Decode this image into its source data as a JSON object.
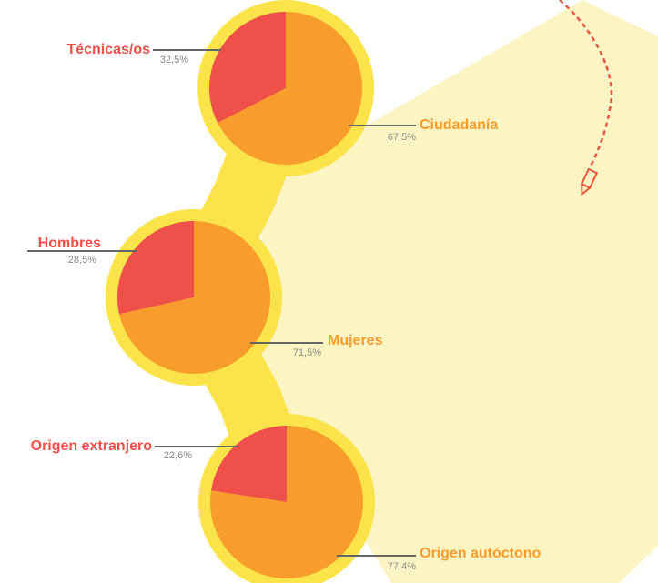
{
  "chart_data": [
    {
      "type": "pie",
      "categories": [
        "Técnicas/os",
        "Ciudadanía"
      ],
      "values": [
        32.5,
        67.5
      ],
      "value_labels": [
        "32,5%",
        "67,5%"
      ],
      "colors": [
        "#f0504a",
        "#f89c2c"
      ]
    },
    {
      "type": "pie",
      "categories": [
        "Hombres",
        "Mujeres"
      ],
      "values": [
        28.5,
        71.5
      ],
      "value_labels": [
        "28,5%",
        "71,5%"
      ],
      "colors": [
        "#f0504a",
        "#f89c2c"
      ]
    },
    {
      "type": "pie",
      "categories": [
        "Origen extranjero",
        "Origen autóctono"
      ],
      "values": [
        22.6,
        77.4
      ],
      "value_labels": [
        "22,6%",
        "77,4%"
      ],
      "colors": [
        "#f0504a",
        "#f89c2c"
      ]
    }
  ]
}
